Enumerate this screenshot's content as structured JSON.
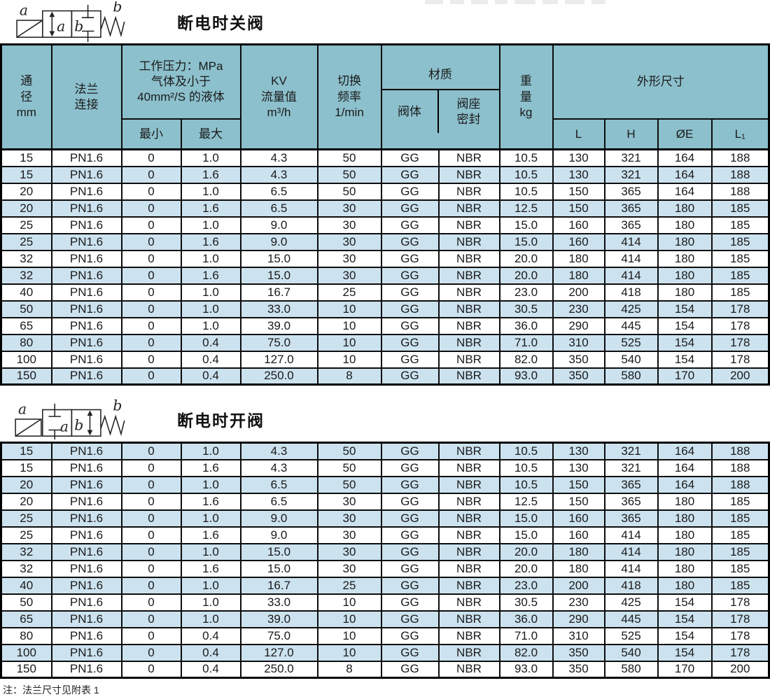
{
  "page": {
    "note": "注：法兰尺寸见附表 1"
  },
  "colors": {
    "header_bg": "#8cc0cc",
    "row_alt_bg": "#cce2ef",
    "row_bg": "#ffffff",
    "border": "#000000",
    "text": "#1a1a1a"
  },
  "sections": [
    {
      "title": "断电时关阀",
      "diagram_labels": {
        "coil": "a",
        "spring": "b",
        "left_box": "a",
        "right_box": "b"
      }
    },
    {
      "title": "断电时开阀",
      "diagram_labels": {
        "coil": "a",
        "spring": "b",
        "left_box": "a",
        "right_box": "b"
      }
    }
  ],
  "table": {
    "header": {
      "diameter": "通\n径\nmm",
      "flange": "法兰\n连接",
      "pressure_group": "工作压力：MPa\n气体及小于\n40mm²/S 的液体",
      "pressure_min": "最小",
      "pressure_max": "最大",
      "kv": "KV\n流量值\nm³/h",
      "frequency": "切换\n频率\n1/min",
      "material_group": "材质",
      "material_body": "阀体",
      "material_seal": "阀座\n密封",
      "weight": "重\n量\nkg",
      "dimensions_group": "外形尺寸",
      "dim_l": "L",
      "dim_h": "H",
      "dim_e": "ØE",
      "dim_l1": "L₁"
    },
    "rows": [
      [
        "15",
        "PN1.6",
        "0",
        "1.0",
        "4.3",
        "50",
        "GG",
        "NBR",
        "10.5",
        "130",
        "321",
        "164",
        "188"
      ],
      [
        "15",
        "PN1.6",
        "0",
        "1.6",
        "4.3",
        "50",
        "GG",
        "NBR",
        "10.5",
        "130",
        "321",
        "164",
        "188"
      ],
      [
        "20",
        "PN1.6",
        "0",
        "1.0",
        "6.5",
        "50",
        "GG",
        "NBR",
        "10.5",
        "150",
        "365",
        "164",
        "188"
      ],
      [
        "20",
        "PN1.6",
        "0",
        "1.6",
        "6.5",
        "30",
        "GG",
        "NBR",
        "12.5",
        "150",
        "365",
        "180",
        "185"
      ],
      [
        "25",
        "PN1.6",
        "0",
        "1.0",
        "9.0",
        "30",
        "GG",
        "NBR",
        "15.0",
        "160",
        "365",
        "180",
        "185"
      ],
      [
        "25",
        "PN1.6",
        "0",
        "1.6",
        "9.0",
        "30",
        "GG",
        "NBR",
        "15.0",
        "160",
        "414",
        "180",
        "185"
      ],
      [
        "32",
        "PN1.6",
        "0",
        "1.0",
        "15.0",
        "30",
        "GG",
        "NBR",
        "20.0",
        "180",
        "414",
        "180",
        "185"
      ],
      [
        "32",
        "PN1.6",
        "0",
        "1.6",
        "15.0",
        "30",
        "GG",
        "NBR",
        "20.0",
        "180",
        "414",
        "180",
        "185"
      ],
      [
        "40",
        "PN1.6",
        "0",
        "1.0",
        "16.7",
        "25",
        "GG",
        "NBR",
        "23.0",
        "200",
        "418",
        "180",
        "185"
      ],
      [
        "50",
        "PN1.6",
        "0",
        "1.0",
        "33.0",
        "10",
        "GG",
        "NBR",
        "30.5",
        "230",
        "425",
        "154",
        "178"
      ],
      [
        "65",
        "PN1.6",
        "0",
        "1.0",
        "39.0",
        "10",
        "GG",
        "NBR",
        "36.0",
        "290",
        "445",
        "154",
        "178"
      ],
      [
        "80",
        "PN1.6",
        "0",
        "0.4",
        "75.0",
        "10",
        "GG",
        "NBR",
        "71.0",
        "310",
        "525",
        "154",
        "178"
      ],
      [
        "100",
        "PN1.6",
        "0",
        "0.4",
        "127.0",
        "10",
        "GG",
        "NBR",
        "82.0",
        "350",
        "540",
        "154",
        "178"
      ],
      [
        "150",
        "PN1.6",
        "0",
        "0.4",
        "250.0",
        "8",
        "GG",
        "NBR",
        "93.0",
        "350",
        "580",
        "170",
        "200"
      ]
    ]
  }
}
